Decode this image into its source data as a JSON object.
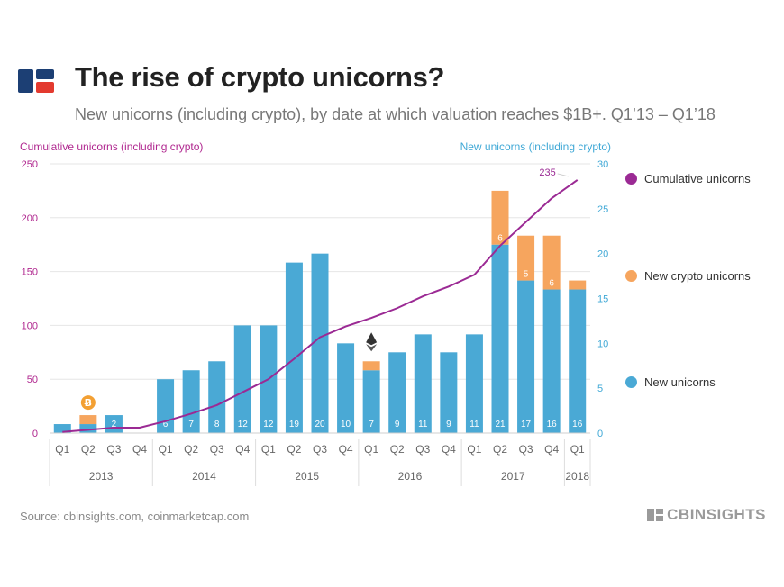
{
  "header": {
    "title": "The rise of crypto unicorns?",
    "subtitle": "New unicorns (including crypto), by date at which valuation reaches $1B+. Q1’13 – Q1’18"
  },
  "footer": {
    "source": "Source: cbinsights.com, coinmarketcap.com",
    "brand": "CBINSIGHTS"
  },
  "colors": {
    "new": "#4aa9d5",
    "crypto": "#f6a55e",
    "cumulative": "#9b2a94",
    "left_axis": "#b0278f",
    "right_axis": "#3fa8d6"
  },
  "chart_data": {
    "type": "bar",
    "ylabel_left": "Cumulative unicorns (including crypto)",
    "ylabel_right": "New unicorns (including crypto)",
    "ylim_left": [
      0,
      250
    ],
    "ylim_right": [
      0,
      30
    ],
    "yticks_left": [
      "0",
      "50",
      "100",
      "150",
      "200",
      "250"
    ],
    "yticks_right": [
      "0",
      "5",
      "10",
      "15",
      "20",
      "25",
      "30"
    ],
    "categories": [
      "Q1",
      "Q2",
      "Q3",
      "Q4",
      "Q1",
      "Q2",
      "Q3",
      "Q4",
      "Q1",
      "Q2",
      "Q3",
      "Q4",
      "Q1",
      "Q2",
      "Q3",
      "Q4",
      "Q1",
      "Q2",
      "Q3",
      "Q4",
      "Q1"
    ],
    "years": [
      {
        "label": "2013",
        "count": 4
      },
      {
        "label": "2014",
        "count": 4
      },
      {
        "label": "2015",
        "count": 4
      },
      {
        "label": "2016",
        "count": 4
      },
      {
        "label": "2017",
        "count": 4
      },
      {
        "label": "2018",
        "count": 1
      }
    ],
    "series": [
      {
        "name": "New unicorns",
        "values": [
          1,
          1,
          2,
          0,
          6,
          7,
          8,
          12,
          12,
          19,
          20,
          10,
          7,
          9,
          11,
          9,
          11,
          21,
          17,
          16,
          16
        ]
      },
      {
        "name": "New crypto unicorns",
        "values": [
          0,
          1,
          0,
          0,
          0,
          0,
          0,
          0,
          0,
          0,
          0,
          0,
          1,
          0,
          0,
          0,
          0,
          6,
          5,
          6,
          1
        ]
      },
      {
        "name": "Cumulative unicorns",
        "values": [
          1,
          3,
          5,
          5,
          11,
          18,
          26,
          38,
          50,
          69,
          89,
          99,
          107,
          116,
          127,
          136,
          147,
          174,
          196,
          218,
          235
        ]
      }
    ],
    "bar_labels": [
      "",
      "",
      "2",
      "",
      "6",
      "7",
      "8",
      "12",
      "12",
      "19",
      "20",
      "10",
      "7",
      "9",
      "11",
      "9",
      "11",
      "21",
      "17",
      "16",
      "16"
    ],
    "crypto_labels": [
      "",
      "",
      "",
      "",
      "",
      "",
      "",
      "",
      "",
      "",
      "",
      "",
      "",
      "",
      "",
      "",
      "",
      "6",
      "5",
      "6",
      ""
    ],
    "cumulative_end_label": "235",
    "annotations": {
      "bitcoin_icon_quarter": 1,
      "ether_icon_quarter": 12
    },
    "legend": [
      "Cumulative unicorns",
      "New crypto unicorns",
      "New unicorns"
    ],
    "legend_position": "right",
    "grid": true
  }
}
